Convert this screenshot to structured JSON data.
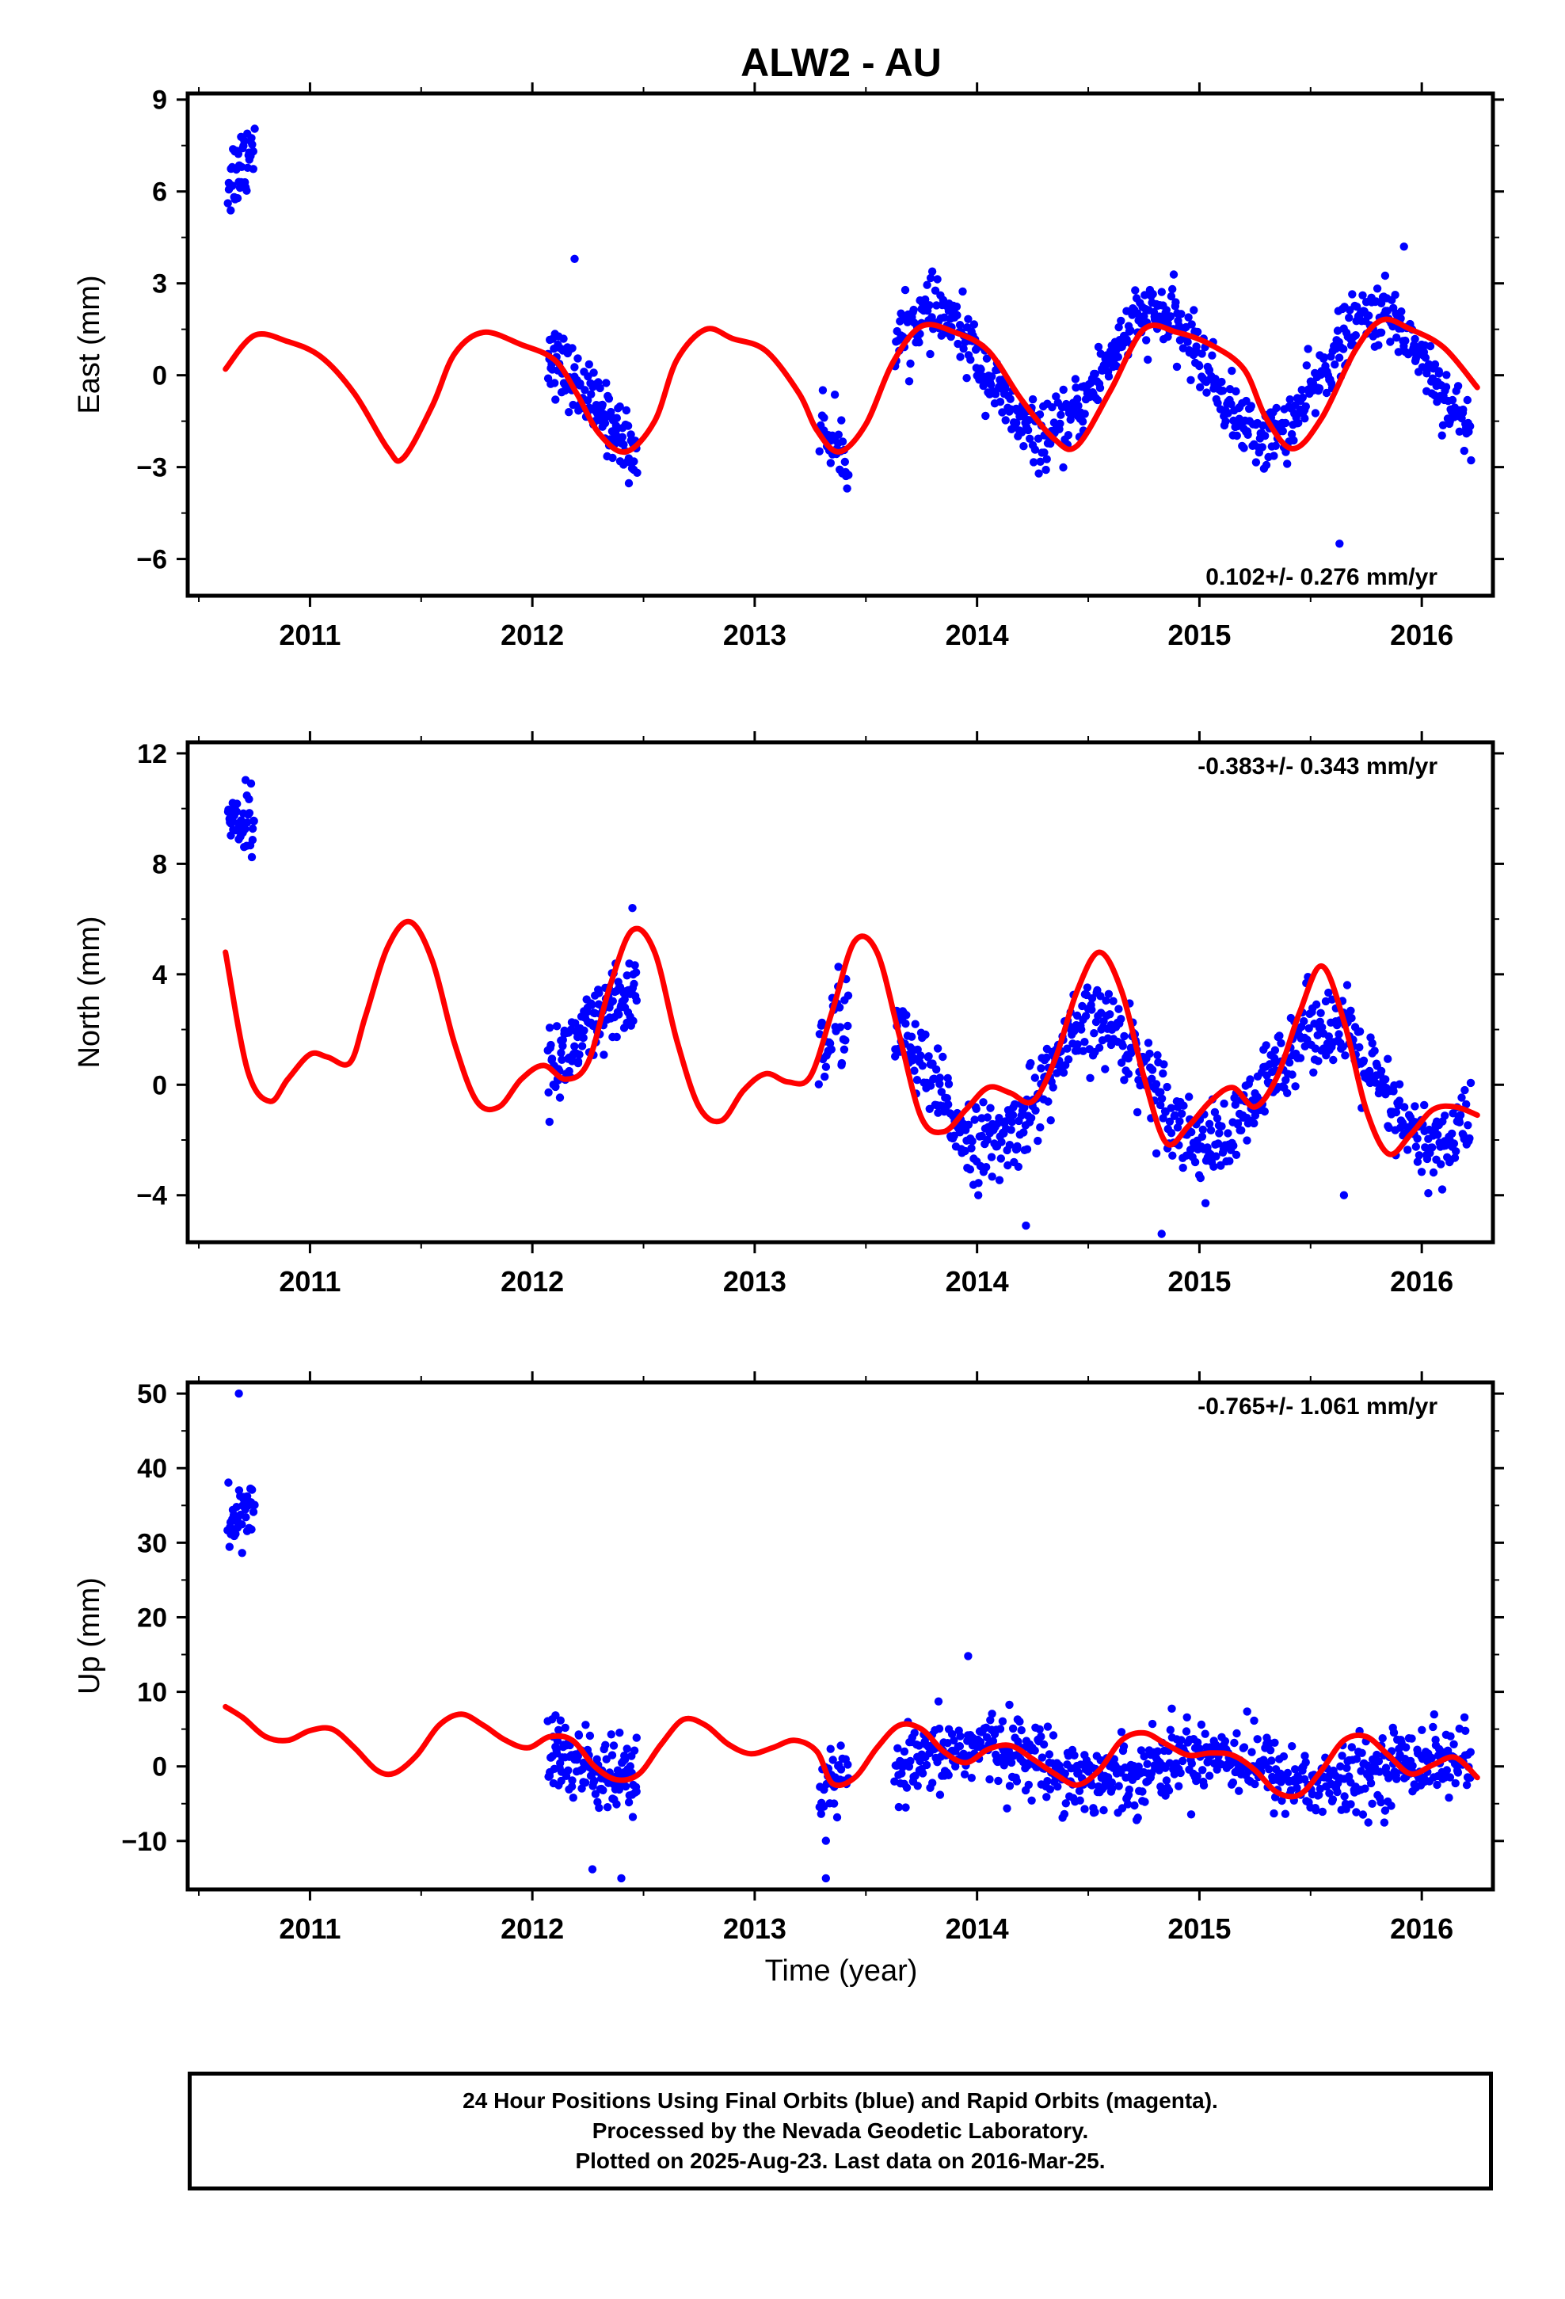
{
  "title": "ALW2 - AU",
  "xlabel": "Time (year)",
  "footer": {
    "line1": "24 Hour Positions Using Final Orbits (blue) and Rapid Orbits (magenta).",
    "line2": "Processed by the Nevada Geodetic Laboratory.",
    "line3": "Plotted on 2025-Aug-23. Last data on 2016-Mar-25."
  },
  "colors": {
    "points": "#0000ff",
    "model": "#ff0000",
    "axis": "#000000"
  },
  "chart_data": [
    {
      "type": "scatter",
      "name": "east",
      "ylabel": "East (mm)",
      "rate_label": "0.102+/- 0.276 mm/yr",
      "rate_position": "bottom-right",
      "xlim": [
        2010.45,
        2016.32
      ],
      "ylim": [
        -7.2,
        9.2
      ],
      "xticks": [
        "2011",
        "2012",
        "2013",
        "2014",
        "2015",
        "2016"
      ],
      "yticks": [
        "9",
        "6",
        "3",
        "0",
        "−3",
        "−6"
      ],
      "ytick_values": [
        9,
        6,
        3,
        0,
        -3,
        -6
      ],
      "model_curve": {
        "x": [
          2010.62,
          2010.75,
          2010.9,
          2011.05,
          2011.2,
          2011.35,
          2011.42,
          2011.55,
          2011.65,
          2011.78,
          2011.95,
          2012.1,
          2012.2,
          2012.3,
          2012.42,
          2012.55,
          2012.65,
          2012.78,
          2012.9,
          2013.05,
          2013.2,
          2013.28,
          2013.38,
          2013.5,
          2013.62,
          2013.75,
          2013.9,
          2014.05,
          2014.2,
          2014.35,
          2014.45,
          2014.6,
          2014.75,
          2014.9,
          2015.05,
          2015.2,
          2015.3,
          2015.42,
          2015.55,
          2015.7,
          2015.82,
          2015.95,
          2016.1,
          2016.25
        ],
        "y": [
          0.2,
          1.3,
          1.1,
          0.6,
          -0.6,
          -2.4,
          -2.7,
          -1.0,
          0.7,
          1.4,
          1.0,
          0.5,
          -0.6,
          -1.9,
          -2.5,
          -1.5,
          0.5,
          1.5,
          1.2,
          0.8,
          -0.6,
          -1.8,
          -2.5,
          -1.6,
          0.4,
          1.6,
          1.4,
          0.8,
          -0.8,
          -2.1,
          -2.3,
          -0.5,
          1.5,
          1.4,
          1.0,
          0.2,
          -1.4,
          -2.4,
          -1.4,
          0.8,
          1.8,
          1.5,
          0.9,
          -0.4
        ]
      },
      "segments": [
        {
          "x_start": 2010.63,
          "x_end": 2010.75,
          "count": 40,
          "y_start": 6.3,
          "y_end": 7.6,
          "amp": 0.0,
          "phase": 0,
          "noise": 1.1
        },
        {
          "x_start": 2012.07,
          "x_end": 2012.47,
          "count": 140,
          "y_start": 0.8,
          "y_end": -2.6,
          "amp": 0.0,
          "phase": 0,
          "noise": 0.9
        },
        {
          "x_start": 2013.29,
          "x_end": 2013.42,
          "count": 35,
          "y_start": -1.5,
          "y_end": -2.8,
          "amp": 0.0,
          "phase": 0,
          "noise": 0.9
        },
        {
          "x_start": 2013.63,
          "x_end": 2016.22,
          "count": 700,
          "y_start": 0.0,
          "y_end": 0.0,
          "amp": 2.0,
          "phase": 2013.55,
          "noise": 0.85
        }
      ],
      "outliers": [
        {
          "x": 2015.63,
          "y": -5.5
        },
        {
          "x": 2012.19,
          "y": 3.8
        },
        {
          "x": 2015.92,
          "y": 4.2
        }
      ]
    },
    {
      "type": "scatter",
      "name": "north",
      "ylabel": "North (mm)",
      "rate_label": "-0.383+/- 0.343 mm/yr",
      "rate_position": "top-right",
      "xlim": [
        2010.45,
        2016.32
      ],
      "ylim": [
        -5.7,
        12.4
      ],
      "xticks": [
        "2011",
        "2012",
        "2013",
        "2014",
        "2015",
        "2016"
      ],
      "yticks": [
        "12",
        "8",
        "4",
        "0",
        "−4"
      ],
      "ytick_values": [
        12,
        8,
        4,
        0,
        -4
      ],
      "model_curve": {
        "x": [
          2010.62,
          2010.72,
          2010.82,
          2010.9,
          2011.0,
          2011.08,
          2011.18,
          2011.25,
          2011.35,
          2011.45,
          2011.55,
          2011.65,
          2011.75,
          2011.85,
          2011.95,
          2012.05,
          2012.15,
          2012.25,
          2012.35,
          2012.45,
          2012.55,
          2012.65,
          2012.75,
          2012.85,
          2012.95,
          2013.05,
          2013.15,
          2013.25,
          2013.35,
          2013.45,
          2013.55,
          2013.65,
          2013.75,
          2013.85,
          2013.95,
          2014.05,
          2014.15,
          2014.25,
          2014.35,
          2014.45,
          2014.55,
          2014.65,
          2014.75,
          2014.85,
          2014.95,
          2015.05,
          2015.15,
          2015.25,
          2015.35,
          2015.45,
          2015.55,
          2015.65,
          2015.75,
          2015.85,
          2015.95,
          2016.05,
          2016.15,
          2016.25
        ],
        "y": [
          4.8,
          0.5,
          -0.6,
          0.2,
          1.1,
          1.0,
          0.8,
          2.5,
          5.0,
          5.9,
          4.5,
          1.5,
          -0.6,
          -0.8,
          0.2,
          0.7,
          0.2,
          0.8,
          3.6,
          5.6,
          4.8,
          1.6,
          -0.8,
          -1.3,
          -0.2,
          0.4,
          0.1,
          0.3,
          2.7,
          5.2,
          4.8,
          1.8,
          -1.2,
          -1.7,
          -0.9,
          -0.1,
          -0.3,
          -0.6,
          0.9,
          3.4,
          4.8,
          3.4,
          0.3,
          -2.1,
          -1.5,
          -0.6,
          -0.1,
          -0.8,
          0.3,
          2.6,
          4.3,
          2.3,
          -0.9,
          -2.5,
          -1.8,
          -0.9,
          -0.8,
          -1.1
        ]
      },
      "segments": [
        {
          "x_start": 2010.63,
          "x_end": 2010.75,
          "count": 40,
          "y_start": 9.6,
          "y_end": 9.6,
          "amp": 0.0,
          "phase": 0,
          "noise": 1.0
        },
        {
          "x_start": 2012.07,
          "x_end": 2012.47,
          "count": 140,
          "y_start": 0.5,
          "y_end": 3.5,
          "amp": 0.0,
          "phase": 0,
          "noise": 1.2
        },
        {
          "x_start": 2013.29,
          "x_end": 2013.42,
          "count": 35,
          "y_start": 1.0,
          "y_end": 3.0,
          "amp": 0.0,
          "phase": 0,
          "noise": 1.5
        },
        {
          "x_start": 2013.63,
          "x_end": 2016.22,
          "count": 700,
          "y_start": 0.0,
          "y_end": 0.0,
          "amp": 2.2,
          "phase": 2014.3,
          "noise": 1.2
        }
      ],
      "outliers": [
        {
          "x": 2012.45,
          "y": 6.4
        },
        {
          "x": 2014.22,
          "y": -5.1
        },
        {
          "x": 2014.83,
          "y": -5.4
        },
        {
          "x": 2015.65,
          "y": -4.0
        }
      ]
    },
    {
      "type": "scatter",
      "name": "up",
      "ylabel": "Up (mm)",
      "rate_label": "-0.765+/- 1.061 mm/yr",
      "rate_position": "top-right",
      "xlim": [
        2010.45,
        2016.32
      ],
      "ylim": [
        -16.5,
        51.5
      ],
      "xticks": [
        "2011",
        "2012",
        "2013",
        "2014",
        "2015",
        "2016"
      ],
      "yticks": [
        "50",
        "40",
        "30",
        "20",
        "10",
        "0",
        "−10"
      ],
      "ytick_values": [
        50,
        40,
        30,
        20,
        10,
        0,
        -10
      ],
      "model_curve": {
        "x": [
          2010.62,
          2010.7,
          2010.8,
          2010.9,
          2011.0,
          2011.1,
          2011.2,
          2011.3,
          2011.38,
          2011.48,
          2011.58,
          2011.68,
          2011.78,
          2011.88,
          2011.98,
          2012.08,
          2012.18,
          2012.28,
          2012.38,
          2012.48,
          2012.58,
          2012.68,
          2012.78,
          2012.88,
          2012.98,
          2013.08,
          2013.18,
          2013.28,
          2013.35,
          2013.45,
          2013.55,
          2013.65,
          2013.75,
          2013.85,
          2013.95,
          2014.05,
          2014.15,
          2014.25,
          2014.35,
          2014.45,
          2014.55,
          2014.65,
          2014.75,
          2014.85,
          2014.95,
          2015.05,
          2015.15,
          2015.25,
          2015.35,
          2015.45,
          2015.55,
          2015.65,
          2015.75,
          2015.85,
          2015.95,
          2016.05,
          2016.15,
          2016.25
        ],
        "y": [
          8.0,
          6.5,
          4.0,
          3.5,
          4.8,
          5.0,
          2.5,
          -0.5,
          -0.9,
          1.5,
          5.5,
          7.0,
          5.5,
          3.5,
          2.5,
          4.0,
          3.5,
          0.0,
          -1.8,
          -1.0,
          3.0,
          6.3,
          5.5,
          3.0,
          1.7,
          2.5,
          3.5,
          2.0,
          -2.3,
          -1.5,
          2.5,
          5.5,
          5.0,
          2.0,
          0.5,
          2.3,
          2.8,
          1.0,
          -1.0,
          -2.5,
          -0.5,
          3.5,
          4.5,
          3.0,
          1.5,
          1.8,
          1.5,
          -0.5,
          -3.5,
          -3.8,
          -0.5,
          3.5,
          4.0,
          1.5,
          -1.0,
          0.2,
          1.2,
          -1.5
        ]
      },
      "segments": [
        {
          "x_start": 2010.63,
          "x_end": 2010.75,
          "count": 40,
          "y_start": 32.0,
          "y_end": 35.0,
          "amp": 0.0,
          "phase": 0,
          "noise": 4.0
        },
        {
          "x_start": 2012.07,
          "x_end": 2012.47,
          "count": 140,
          "y_start": 2.0,
          "y_end": -3.0,
          "amp": 0.0,
          "phase": 0,
          "noise": 4.5
        },
        {
          "x_start": 2013.29,
          "x_end": 2013.42,
          "count": 35,
          "y_start": -3.0,
          "y_end": -2.0,
          "amp": 0.0,
          "phase": 0,
          "noise": 4.0
        },
        {
          "x_start": 2013.63,
          "x_end": 2016.22,
          "count": 700,
          "y_start": 1.0,
          "y_end": -1.0,
          "amp": 2.0,
          "phase": 2013.8,
          "noise": 4.0
        }
      ],
      "outliers": [
        {
          "x": 2010.68,
          "y": 50.0
        },
        {
          "x": 2013.96,
          "y": 14.8
        },
        {
          "x": 2012.27,
          "y": -13.8
        },
        {
          "x": 2013.32,
          "y": -15.0
        },
        {
          "x": 2012.4,
          "y": -15.0
        }
      ]
    }
  ]
}
